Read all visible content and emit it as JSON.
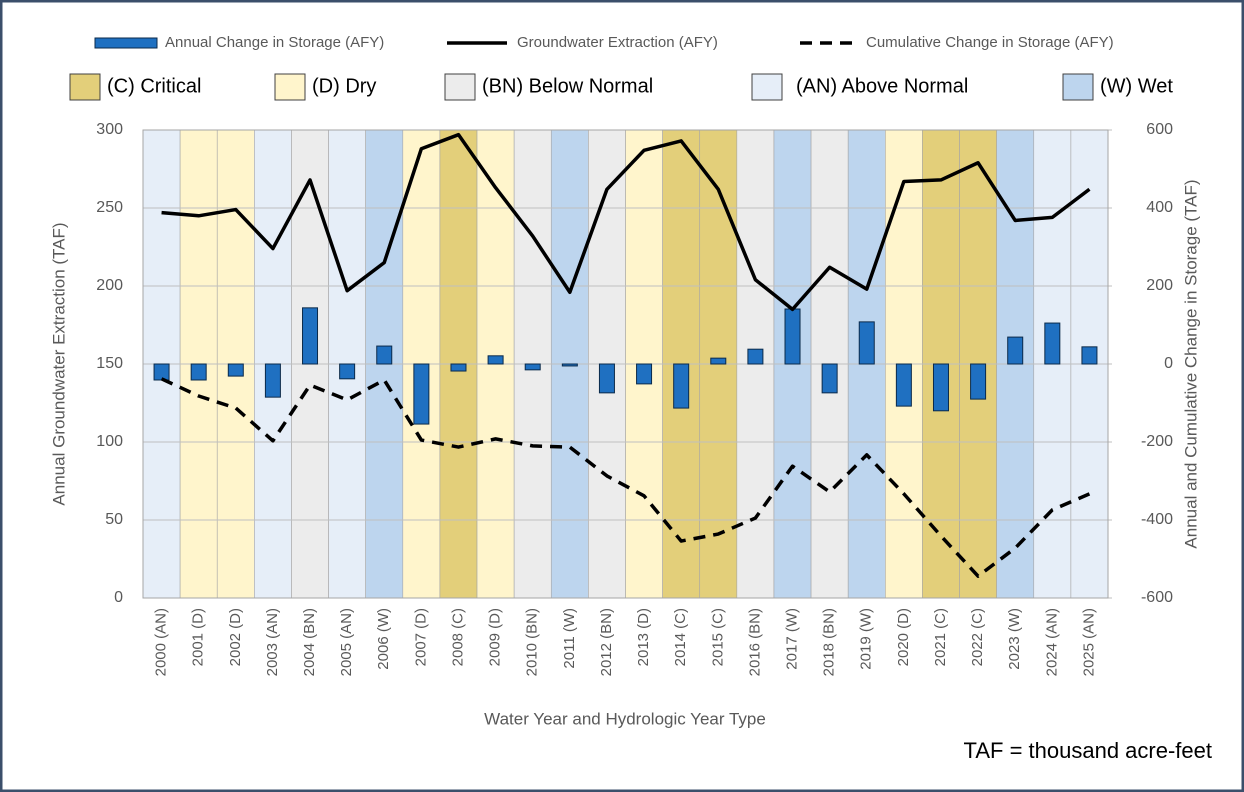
{
  "chart_data": {
    "type": "combo",
    "x_label": "Water Year and Hydrologic Year Type",
    "y_label": "Annual Groundwater Extraction (TAF)",
    "y2_label": "Annual and Cumulative Change in Storage (TAF)",
    "note": "TAF = thousand acre-feet",
    "categories": [
      "2000 (AN)",
      "2001 (D)",
      "2002 (D)",
      "2003 (AN)",
      "2004 (BN)",
      "2005 (AN)",
      "2006 (W)",
      "2007 (D)",
      "2008 (C)",
      "2009 (D)",
      "2010 (BN)",
      "2011 (W)",
      "2012 (BN)",
      "2013 (D)",
      "2014 (C)",
      "2015 (C)",
      "2016 (BN)",
      "2017 (W)",
      "2018 (BN)",
      "2019 (W)",
      "2020 (D)",
      "2021 (C)",
      "2022 (C)",
      "2023 (W)",
      "2024 (AN)",
      "2025 (AN)"
    ],
    "year_types": [
      {
        "label": "(C) Critical",
        "color": "#e3cf7a"
      },
      {
        "label": "(D) Dry",
        "color": "#fff5cc"
      },
      {
        "label": "(BN) Below Normal",
        "color": "#ececec"
      },
      {
        "label": "(AN) Above Normal",
        "color": "#e6eef8"
      },
      {
        "label": "(W) Wet",
        "color": "#bdd5ee"
      }
    ],
    "series": [
      {
        "name": "Annual Change in Storage (AFY)",
        "type": "bar",
        "axis": "y2",
        "color": "#1f70c1",
        "values": [
          -41,
          -41,
          -31,
          -85,
          144,
          -38,
          46,
          -154,
          -18,
          21,
          -15,
          -5,
          -74,
          -51,
          -113,
          15,
          38,
          141,
          -74,
          108,
          -108,
          -120,
          -90,
          69,
          105,
          44
        ]
      },
      {
        "name": "Groundwater Extraction (AFY)",
        "type": "line",
        "axis": "y",
        "color": "#000000",
        "dashed": false,
        "values": [
          247,
          245,
          249,
          224,
          268,
          197,
          215,
          288,
          297,
          263,
          232,
          196,
          262,
          287,
          293,
          262,
          204,
          185,
          212,
          198,
          267,
          268,
          279,
          242,
          244,
          262
        ]
      },
      {
        "name": "Cumulative Change in Storage (AFY)",
        "type": "line",
        "axis": "y2",
        "color": "#000000",
        "dashed": true,
        "values": [
          -38,
          -82,
          -113,
          -197,
          -54,
          -92,
          -41,
          -195,
          -213,
          -192,
          -210,
          -213,
          -287,
          -338,
          -454,
          -436,
          -395,
          -262,
          -328,
          -233,
          -333,
          -441,
          -544,
          -472,
          -374,
          -333
        ]
      }
    ],
    "ylim": [
      0,
      300
    ],
    "yticks": [
      0,
      50,
      100,
      150,
      200,
      250,
      300
    ],
    "y2lim": [
      -600,
      600
    ],
    "y2ticks": [
      -600,
      -400,
      -200,
      0,
      200,
      400,
      600
    ],
    "grid": true
  }
}
